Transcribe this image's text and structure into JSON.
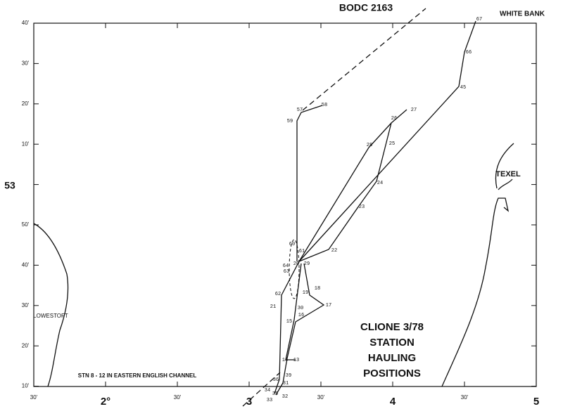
{
  "title": "BODC 2163",
  "places": {
    "white_bank": "WHITE BANK",
    "texel": "TEXEL",
    "lowestoft": "LOWESTOFT"
  },
  "note": "STN 8 - 12 IN EASTERN ENGLISH CHANNEL",
  "caption": [
    "CLIONE 3/78",
    "STATION",
    "HAULING",
    "POSITIONS"
  ],
  "lat_labels": [
    "40'",
    "30'",
    "20'",
    "10'",
    "53",
    "50'",
    "40'",
    "30'",
    "20'",
    "10'"
  ],
  "lon_labels": [
    "30'",
    "2°",
    "30'",
    "3",
    "30'",
    "4",
    "30'",
    "5"
  ],
  "stations": [
    "67",
    "66",
    "45",
    "27",
    "26",
    "25",
    "28",
    "24",
    "23",
    "22",
    "58",
    "57",
    "59",
    "60",
    "61",
    "29",
    "20",
    "64",
    "63",
    "62",
    "21",
    "18",
    "19",
    "17",
    "30",
    "16",
    "15",
    "14",
    "13",
    "39",
    "36",
    "31",
    "34",
    "35",
    "32",
    "33"
  ]
}
